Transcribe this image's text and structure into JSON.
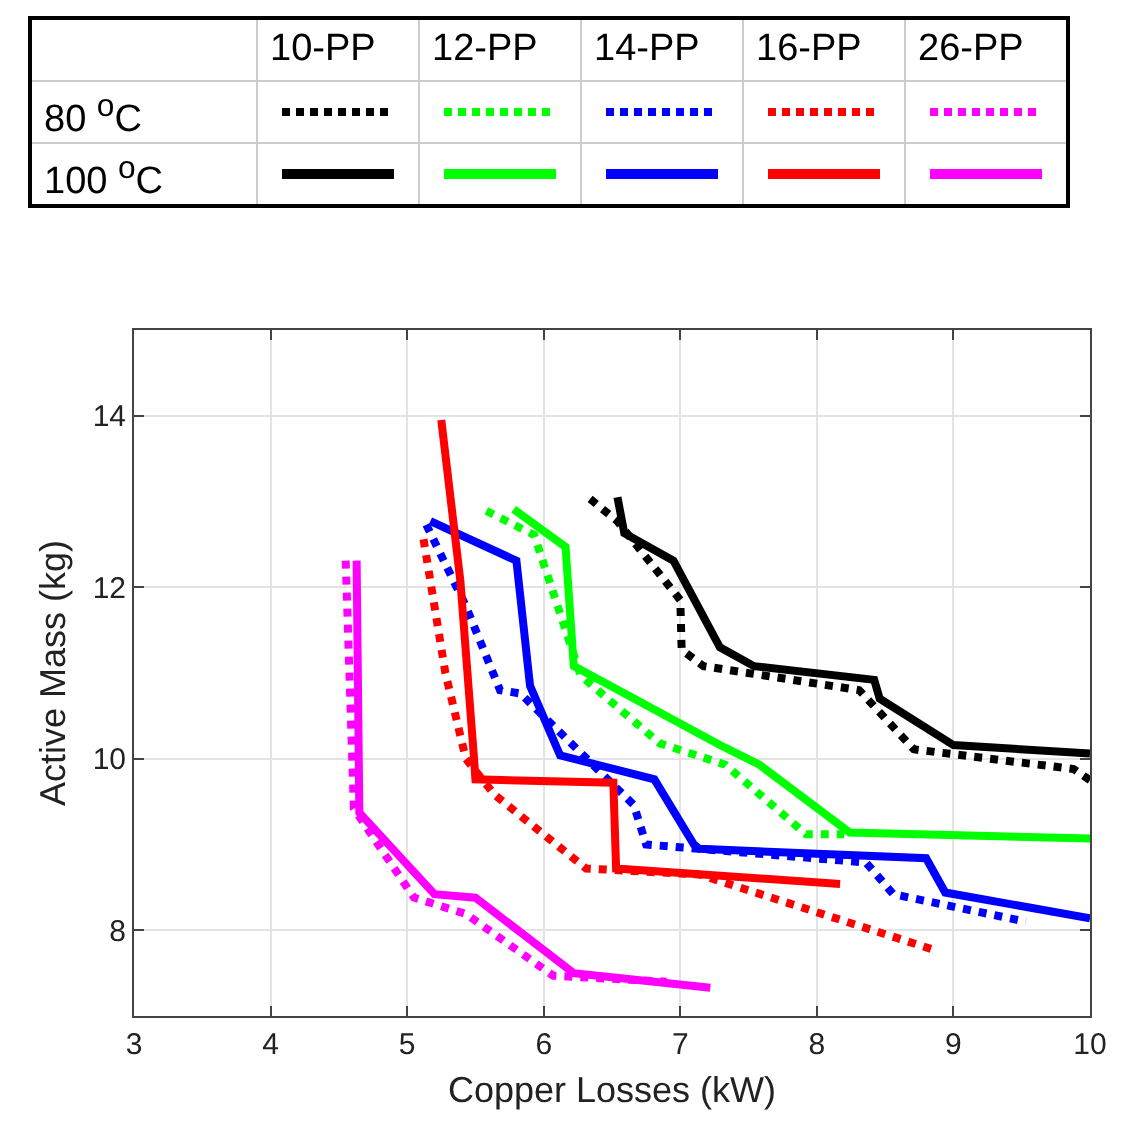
{
  "chart_data": {
    "type": "line",
    "xlabel": "Copper Losses (kW)",
    "ylabel": "Active Mass (kg)",
    "xlim": [
      3,
      10
    ],
    "xticks": [
      3,
      4,
      5,
      6,
      7,
      8,
      9,
      10
    ],
    "ylim": [
      7,
      15
    ],
    "yticks": [
      8,
      10,
      12,
      14
    ],
    "grid": true,
    "marker": "none",
    "annotations": [
      "80 $^{o}$C",
      "100 $^{o}$C",
      "10-PP",
      "12-PP",
      "14-PP",
      "16-PP",
      "26-PP"
    ],
    "series": [
      {
        "color": "#000000",
        "line_style": "dotted",
        "x": [
          6.34,
          6.54,
          7.0,
          7.01,
          7.17,
          8.31,
          8.71,
          9.88,
          10.0
        ],
        "values": [
          13.03,
          12.77,
          11.85,
          11.27,
          11.08,
          10.8,
          10.11,
          9.88,
          9.75
        ]
      },
      {
        "color": "#00ff00",
        "line_style": "dotted",
        "x": [
          5.58,
          5.93,
          6.27,
          6.85,
          7.33,
          7.92,
          8.2
        ],
        "values": [
          12.89,
          12.61,
          10.97,
          10.18,
          9.93,
          9.12,
          9.12
        ]
      },
      {
        "color": "#0000ff",
        "line_style": "dotted",
        "x": [
          5.14,
          5.43,
          5.68,
          5.83,
          6.66,
          6.75,
          8.36,
          8.56,
          9.53
        ],
        "values": [
          12.73,
          11.78,
          10.8,
          10.76,
          9.46,
          9.0,
          8.79,
          8.42,
          8.1
        ]
      },
      {
        "color": "#ff0000",
        "line_style": "dotted",
        "x": [
          5.12,
          5.28,
          5.43,
          5.64,
          6.31,
          7.14,
          8.86
        ],
        "values": [
          12.56,
          11.0,
          10.0,
          9.58,
          8.72,
          8.65,
          7.77
        ]
      },
      {
        "color": "#ff00ff",
        "line_style": "dotted",
        "x": [
          4.55,
          4.61,
          5.05,
          5.43,
          6.07,
          6.9
        ],
        "values": [
          12.31,
          9.42,
          8.38,
          8.19,
          7.47,
          7.4
        ]
      },
      {
        "color": "#000000",
        "line_style": "solid",
        "x": [
          6.54,
          6.59,
          6.95,
          7.29,
          7.54,
          8.42,
          8.46,
          9.0,
          10.0
        ],
        "values": [
          13.05,
          12.63,
          12.31,
          11.3,
          11.08,
          10.92,
          10.7,
          10.16,
          10.06
        ]
      },
      {
        "color": "#00ff00",
        "line_style": "solid",
        "x": [
          5.78,
          6.16,
          6.22,
          7.29,
          7.58,
          8.24,
          10.0
        ],
        "values": [
          12.91,
          12.47,
          11.08,
          10.16,
          9.93,
          9.14,
          9.07
        ]
      },
      {
        "color": "#0000ff",
        "line_style": "solid",
        "x": [
          5.17,
          5.8,
          5.9,
          6.12,
          6.81,
          7.1,
          7.14,
          8.8,
          8.94,
          10.0
        ],
        "values": [
          12.77,
          12.31,
          10.85,
          10.04,
          9.76,
          9.0,
          8.95,
          8.84,
          8.44,
          8.14
        ]
      },
      {
        "color": "#ff0000",
        "line_style": "solid",
        "x": [
          5.25,
          5.39,
          5.49,
          5.5,
          6.51,
          6.53,
          8.17
        ],
        "values": [
          13.95,
          12.07,
          10.0,
          9.76,
          9.72,
          8.72,
          8.54
        ]
      },
      {
        "color": "#ff00ff",
        "line_style": "solid",
        "x": [
          4.63,
          4.65,
          5.2,
          5.5,
          6.22,
          7.22
        ],
        "values": [
          12.31,
          9.37,
          8.42,
          8.38,
          7.5,
          7.33
        ]
      }
    ]
  }
}
